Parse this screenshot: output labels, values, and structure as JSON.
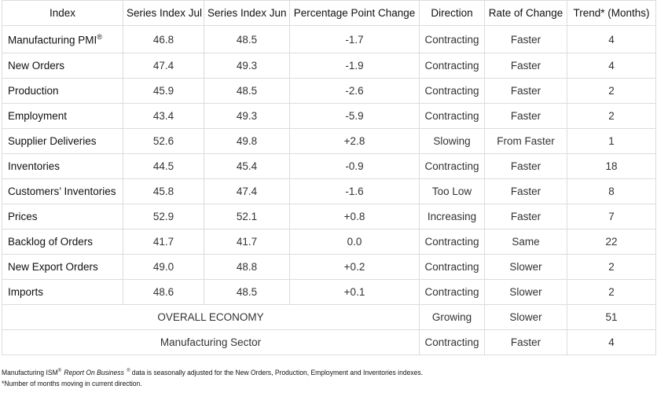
{
  "table": {
    "headers": [
      "Index",
      "Series Index Jul",
      "Series Index Jun",
      "Percentage Point Change",
      "Direction",
      "Rate of Change",
      "Trend* (Months)"
    ],
    "rows": [
      {
        "index": "Manufacturing PMI",
        "index_sup": "®",
        "jul": "46.8",
        "jun": "48.5",
        "change": "-1.7",
        "direction": "Contracting",
        "rate": "Faster",
        "trend": "4"
      },
      {
        "index": "New Orders",
        "jul": "47.4",
        "jun": "49.3",
        "change": "-1.9",
        "direction": "Contracting",
        "rate": "Faster",
        "trend": "4"
      },
      {
        "index": "Production",
        "jul": "45.9",
        "jun": "48.5",
        "change": "-2.6",
        "direction": "Contracting",
        "rate": "Faster",
        "trend": "2"
      },
      {
        "index": "Employment",
        "jul": "43.4",
        "jun": "49.3",
        "change": "-5.9",
        "direction": "Contracting",
        "rate": "Faster",
        "trend": "2"
      },
      {
        "index": "Supplier Deliveries",
        "jul": "52.6",
        "jun": "49.8",
        "change": "+2.8",
        "direction": "Slowing",
        "rate": "From Faster",
        "trend": "1"
      },
      {
        "index": "Inventories",
        "jul": "44.5",
        "jun": "45.4",
        "change": "-0.9",
        "direction": "Contracting",
        "rate": "Faster",
        "trend": "18"
      },
      {
        "index": "Customers’ Inventories",
        "jul": "45.8",
        "jun": "47.4",
        "change": "-1.6",
        "direction": "Too Low",
        "rate": "Faster",
        "trend": "8"
      },
      {
        "index": "Prices",
        "jul": "52.9",
        "jun": "52.1",
        "change": "+0.8",
        "direction": "Increasing",
        "rate": "Faster",
        "trend": "7"
      },
      {
        "index": "Backlog of Orders",
        "jul": "41.7",
        "jun": "41.7",
        "change": "0.0",
        "direction": "Contracting",
        "rate": "Same",
        "trend": "22"
      },
      {
        "index": "New Export Orders",
        "jul": "49.0",
        "jun": "48.8",
        "change": "+0.2",
        "direction": "Contracting",
        "rate": "Slower",
        "trend": "2"
      },
      {
        "index": "Imports",
        "jul": "48.6",
        "jun": "48.5",
        "change": "+0.1",
        "direction": "Contracting",
        "rate": "Slower",
        "trend": "2"
      }
    ],
    "summary": [
      {
        "label": "OVERALL ECONOMY",
        "direction": "Growing",
        "rate": "Slower",
        "trend": "51"
      },
      {
        "label": "Manufacturing Sector",
        "direction": "Contracting",
        "rate": "Faster",
        "trend": "4"
      }
    ]
  },
  "footnotes": {
    "line1": [
      "Manufacturing ISM",
      "®",
      "Report On Business",
      "®",
      "data is seasonally adjusted for the New Orders, Production, Employment and Inventories indexes."
    ],
    "line2": "*Number of months moving in current direction."
  }
}
